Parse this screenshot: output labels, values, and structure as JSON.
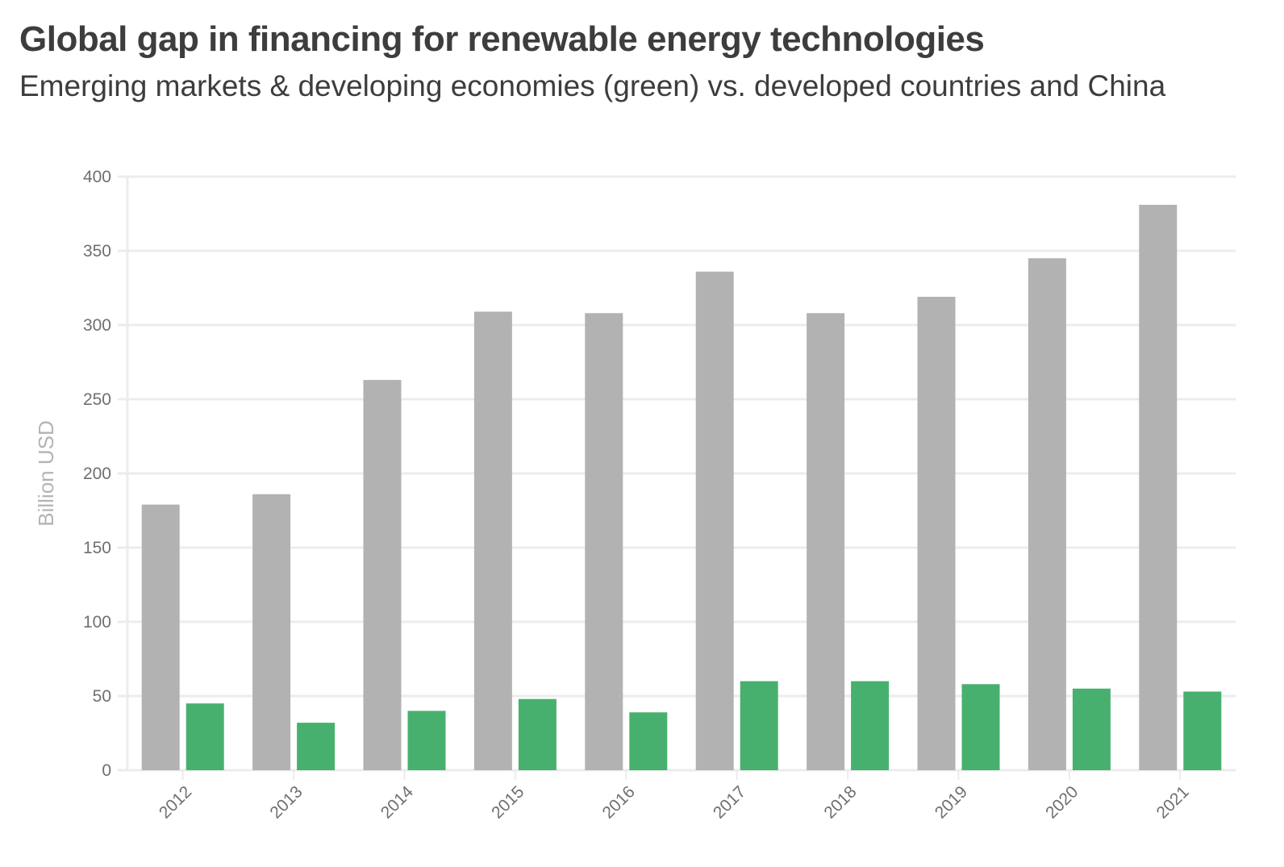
{
  "header": {
    "title": "Global gap in financing for renewable energy technologies",
    "subtitle": "Emerging markets & developing economies (green) vs. developed countries and China"
  },
  "colors": {
    "developed": "#b2b2b2",
    "emerging": "#48b06e",
    "grid": "#ececec",
    "text": "#3d3d3d",
    "tick": "#6f6f6f",
    "axis_title": "#b3b3b3"
  },
  "chart_data": {
    "type": "bar",
    "title": "Global gap in financing for renewable energy technologies",
    "subtitle": "Emerging markets & developing economies (green) vs. developed countries and China",
    "xlabel": "",
    "ylabel": "Billion USD",
    "ylim": [
      0,
      400
    ],
    "yticks": [
      0,
      50,
      100,
      150,
      200,
      250,
      300,
      350,
      400
    ],
    "grid": true,
    "legend": "none",
    "categories": [
      "2012",
      "2013",
      "2014",
      "2015",
      "2016",
      "2017",
      "2018",
      "2019",
      "2020",
      "2021"
    ],
    "series": [
      {
        "name": "Developed countries and China",
        "color": "#b2b2b2",
        "values": [
          179,
          186,
          263,
          309,
          308,
          336,
          308,
          319,
          345,
          381
        ]
      },
      {
        "name": "Emerging markets & developing economies",
        "color": "#48b06e",
        "values": [
          45,
          32,
          40,
          48,
          39,
          60,
          60,
          58,
          55,
          53
        ]
      }
    ]
  }
}
